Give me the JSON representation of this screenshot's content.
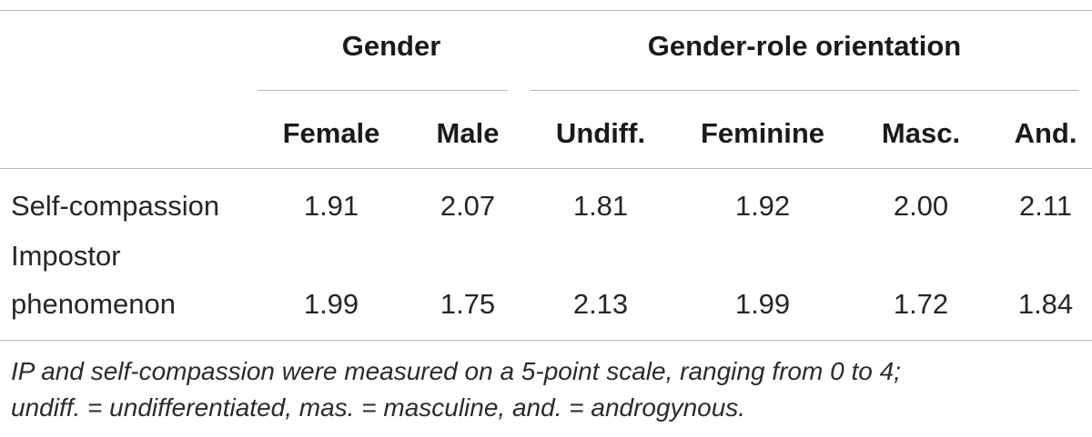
{
  "table": {
    "group_headers": {
      "gender": "Gender",
      "gender_role": "Gender-role orientation"
    },
    "columns": [
      "Female",
      "Male",
      "Undiff.",
      "Feminine",
      "Masc.",
      "And."
    ],
    "rows": [
      {
        "label_lines": [
          "Self-compassion"
        ],
        "values": [
          "1.91",
          "2.07",
          "1.81",
          "1.92",
          "2.00",
          "2.11"
        ]
      },
      {
        "label_lines": [
          "Impostor",
          "phenomenon"
        ],
        "values": [
          "1.99",
          "1.75",
          "2.13",
          "1.99",
          "1.72",
          "1.84"
        ]
      }
    ],
    "footnote_lines": [
      "IP and self-compassion were measured on a 5-point scale, ranging from 0 to 4;",
      "undiff. = undifferentiated, mas. = masculine, and. = androgynous."
    ]
  }
}
